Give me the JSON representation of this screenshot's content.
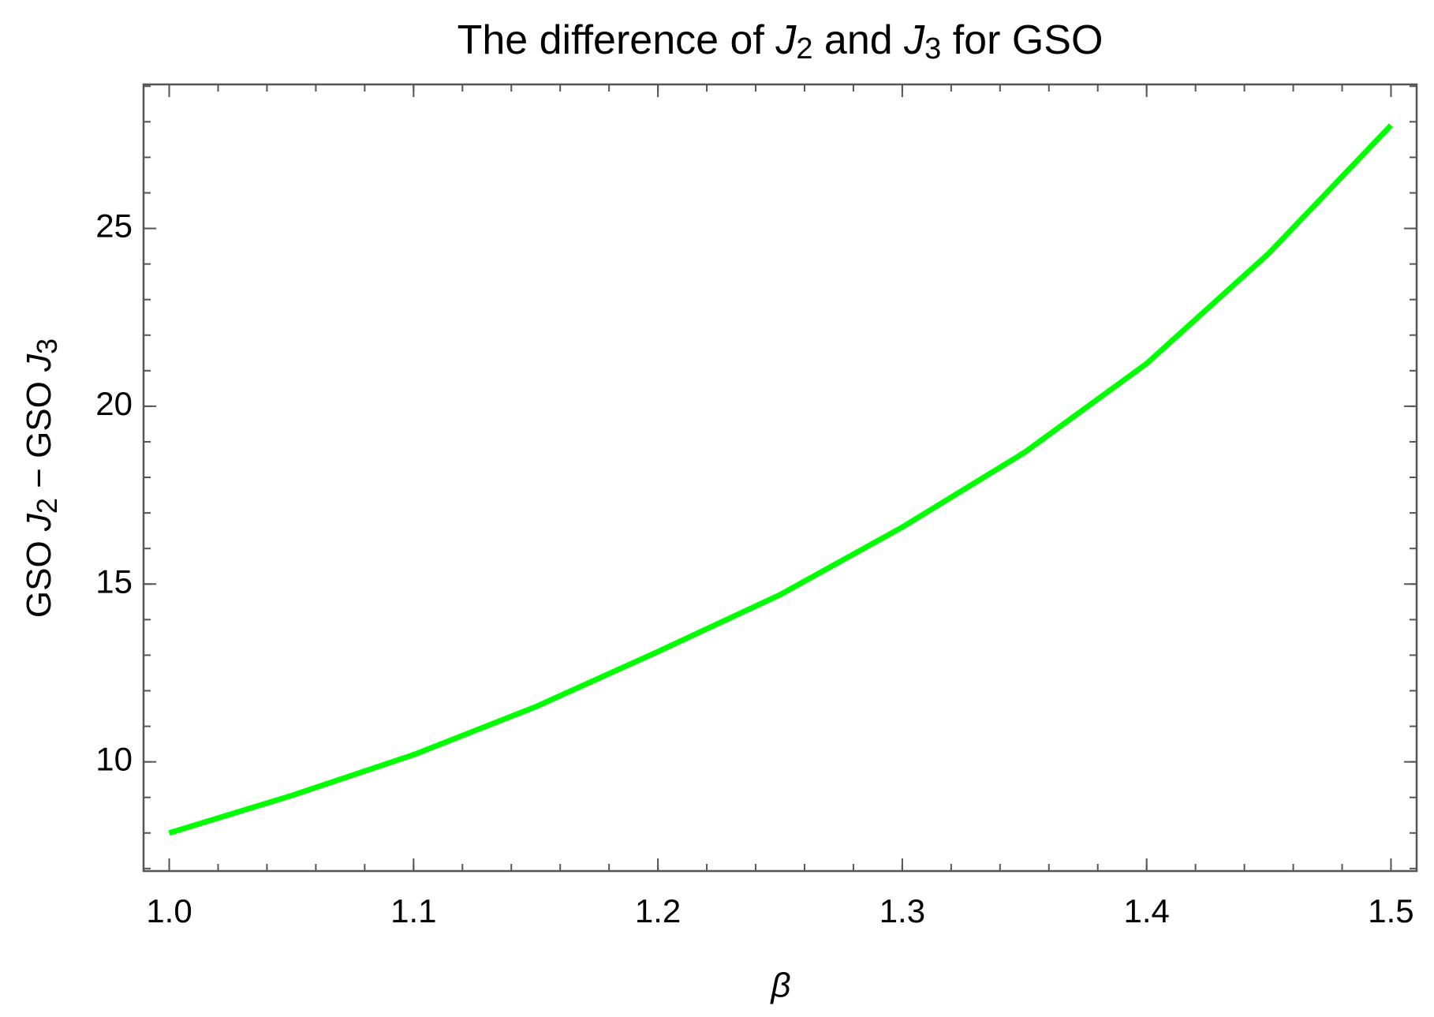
{
  "chart_data": {
    "type": "line",
    "title": [
      "The difference of ",
      "J",
      "2",
      " and ",
      "J",
      "3",
      " for GSO"
    ],
    "x_label": "β",
    "y_label": [
      "GSO ",
      "J",
      "2",
      " − GSO ",
      "J",
      "3"
    ],
    "x": [
      1.0,
      1.05,
      1.1,
      1.15,
      1.2,
      1.25,
      1.3,
      1.35,
      1.4,
      1.45,
      1.5
    ],
    "series": [
      {
        "color": "#00ff00",
        "values": [
          8.0,
          9.05,
          10.2,
          11.55,
          13.1,
          14.7,
          16.6,
          18.7,
          21.2,
          24.3,
          27.9
        ]
      }
    ],
    "xlim": [
      0.9895,
      1.5105
    ],
    "ylim": [
      6.93,
      29.05
    ],
    "xticks": [
      {
        "value": 1.0,
        "label": "1.0"
      },
      1.1,
      1.2,
      1.3,
      1.4,
      1.5
    ],
    "yticks": [
      10,
      15,
      20,
      25
    ]
  }
}
